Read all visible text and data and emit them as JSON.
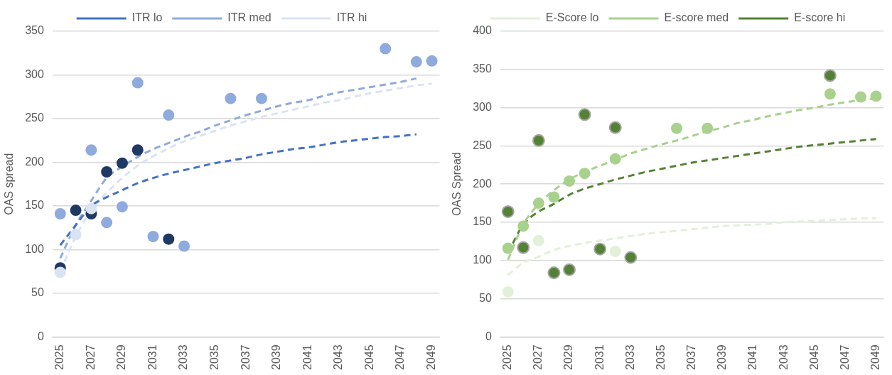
{
  "chart_data": [
    {
      "type": "scatter",
      "ylabel": "OAS spread",
      "categories": [
        "2025",
        null,
        "2027",
        null,
        "2029",
        null,
        "2031",
        null,
        "2033",
        null,
        "2035",
        null,
        "2037",
        null,
        "2039",
        null,
        "2041",
        null,
        "2043",
        null,
        "2045",
        null,
        "2047",
        null,
        "2049"
      ],
      "ylim": [
        0,
        350
      ],
      "yticks": [
        0,
        50,
        100,
        150,
        200,
        250,
        300,
        350
      ],
      "grid": "y",
      "legend": "top",
      "marker": "circle",
      "series": [
        {
          "color": "#203864",
          "values": [
            79,
            145,
            141,
            189,
            199,
            214,
            null,
            112,
            null,
            null,
            null,
            null,
            null,
            null,
            null,
            null,
            null,
            null,
            null,
            null,
            null,
            null,
            null,
            null,
            null
          ]
        },
        {
          "color": "#8faadc",
          "values": [
            141,
            null,
            214,
            131,
            149,
            291,
            115,
            254,
            104,
            null,
            null,
            273,
            null,
            273,
            null,
            null,
            null,
            null,
            null,
            null,
            null,
            330,
            null,
            315,
            316
          ]
        },
        {
          "color": "#dae3f3",
          "values": [
            74,
            117,
            147,
            null,
            null,
            null,
            null,
            null,
            null,
            null,
            null,
            null,
            null,
            null,
            null,
            null,
            null,
            null,
            null,
            null,
            null,
            null,
            null,
            null,
            null
          ]
        },
        {
          "type": "line",
          "name": "ITR lo",
          "color": "#4472c4",
          "line_style": "dashed",
          "marker": "none",
          "values": [
            105,
            128,
            150,
            160,
            168,
            176,
            182,
            187,
            191,
            195,
            199,
            202,
            205,
            209,
            212,
            215,
            217,
            220,
            223,
            225,
            227,
            229,
            230,
            232,
            null
          ]
        },
        {
          "type": "line",
          "name": "ITR med",
          "color": "#8faadc",
          "line_style": "dashed",
          "marker": "none",
          "values": [
            90,
            128,
            156,
            182,
            195,
            206,
            215,
            222,
            229,
            235,
            242,
            248,
            254,
            259,
            264,
            268,
            271,
            276,
            280,
            283,
            286,
            289,
            292,
            296,
            null
          ]
        },
        {
          "type": "line",
          "name": "ITR hi",
          "color": "#dae3f3",
          "line_style": "dashed",
          "marker": "none",
          "values": [
            75,
            115,
            145,
            165,
            182,
            196,
            207,
            216,
            224,
            230,
            236,
            242,
            247,
            252,
            256,
            260,
            264,
            268,
            271,
            275,
            279,
            282,
            285,
            288,
            290
          ]
        }
      ]
    },
    {
      "type": "scatter",
      "ylabel": "OAS Spread",
      "categories": [
        "2025",
        null,
        "2027",
        null,
        "2029",
        null,
        "2031",
        null,
        "2033",
        null,
        "2035",
        null,
        "2037",
        null,
        "2039",
        null,
        "2041",
        null,
        "2043",
        null,
        "2045",
        null,
        "2047",
        null,
        "2049"
      ],
      "ylim": [
        0,
        400
      ],
      "yticks": [
        0,
        50,
        100,
        150,
        200,
        250,
        300,
        350,
        400
      ],
      "grid": "y",
      "legend": "top",
      "marker": "circle",
      "series": [
        {
          "color": "#e2f0d9",
          "values": [
            59,
            null,
            126,
            null,
            null,
            null,
            null,
            112,
            null,
            null,
            null,
            null,
            null,
            null,
            null,
            null,
            null,
            null,
            null,
            null,
            null,
            null,
            null,
            null,
            null
          ]
        },
        {
          "color": "#a9d18e",
          "values": [
            116,
            145,
            175,
            183,
            204,
            214,
            null,
            233,
            null,
            null,
            null,
            273,
            null,
            273,
            null,
            null,
            null,
            null,
            null,
            null,
            null,
            318,
            null,
            314,
            315
          ]
        },
        {
          "color": "#548235",
          "values": [
            164,
            117,
            257,
            84,
            88,
            291,
            115,
            274,
            104,
            null,
            null,
            null,
            null,
            null,
            null,
            null,
            null,
            null,
            null,
            null,
            null,
            342,
            null,
            null,
            null
          ]
        },
        {
          "type": "line",
          "name": "E-Score lo",
          "color": "#e2f0d9",
          "line_style": "dashed",
          "marker": "none",
          "values": [
            81,
            97,
            105,
            114,
            119,
            123,
            126,
            129,
            132,
            135,
            137,
            139,
            141,
            143,
            145,
            146,
            147,
            148,
            150,
            151,
            152,
            153,
            154,
            155,
            155
          ]
        },
        {
          "type": "line",
          "name": "E-score med",
          "color": "#a9d18e",
          "line_style": "dashed",
          "marker": "none",
          "values": [
            101,
            147,
            174,
            192,
            206,
            216,
            224,
            232,
            240,
            246,
            252,
            257,
            263,
            269,
            274,
            280,
            284,
            289,
            293,
            297,
            300,
            304,
            307,
            310,
            312
          ]
        },
        {
          "type": "line",
          "name": "E-score hi",
          "color": "#548235",
          "line_style": "dashed",
          "marker": "none",
          "values": [
            110,
            147,
            164,
            174,
            186,
            194,
            200,
            206,
            211,
            216,
            220,
            224,
            228,
            231,
            234,
            237,
            240,
            243,
            246,
            249,
            251,
            253,
            255,
            257,
            259
          ]
        }
      ]
    }
  ]
}
